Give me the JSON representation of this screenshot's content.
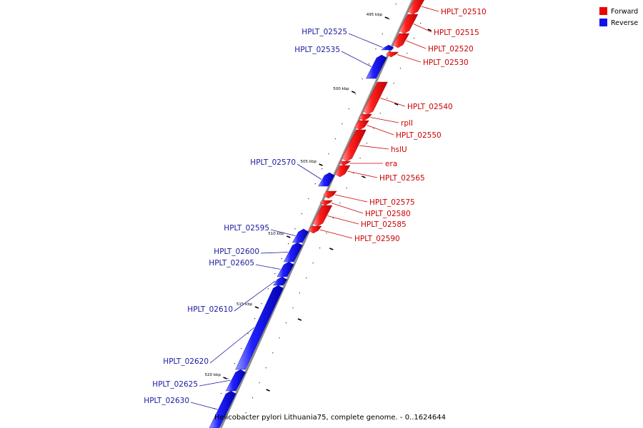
{
  "legend": {
    "forward_label": "Forward",
    "reverse_label": "Reverse",
    "forward_color": "#ee0000",
    "reverse_color": "#1111ee"
  },
  "caption": "Helicobacter pylori Lithuania75, complete genome. - 0..1624644",
  "scale_labels": [
    "495 kbp",
    "500 kbp",
    "505 kbp",
    "510 kbp",
    "515 kbp",
    "520 kbp"
  ],
  "forward_genes": [
    "HPLT_02510",
    "HPLT_02515",
    "HPLT_02520",
    "HPLT_02530",
    "HPLT_02540",
    "rplI",
    "HPLT_02550",
    "hslU",
    "era",
    "HPLT_02565",
    "HPLT_02575",
    "HPLT_02580",
    "HPLT_02585",
    "HPLT_02590"
  ],
  "reverse_genes": [
    "HPLT_02525",
    "HPLT_02535",
    "HPLT_02570",
    "HPLT_02595",
    "HPLT_02600",
    "HPLT_02605",
    "HPLT_02610",
    "HPLT_02620",
    "HPLT_02625",
    "HPLT_02630"
  ]
}
